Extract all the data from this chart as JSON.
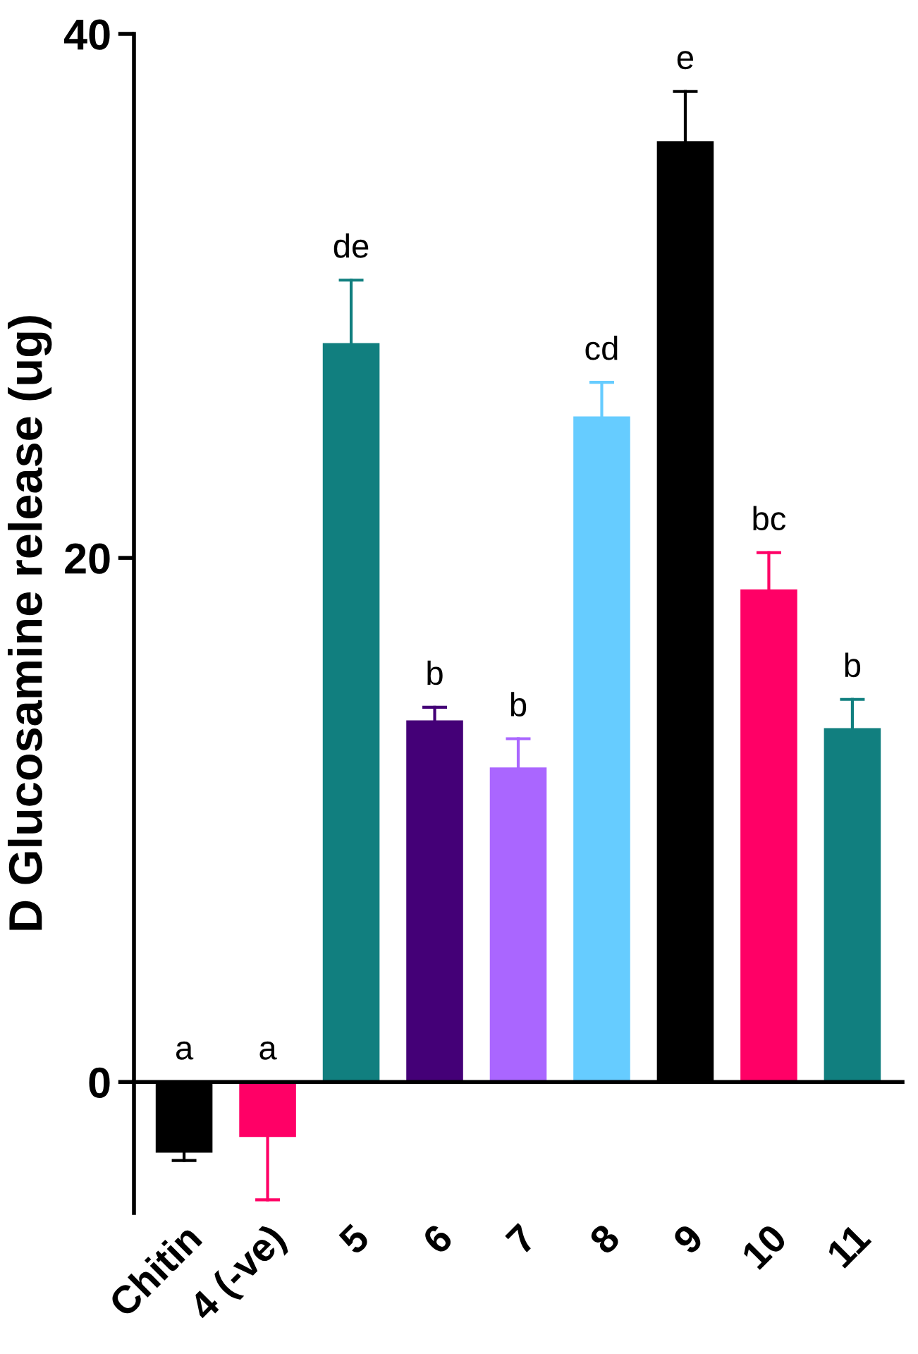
{
  "chart_data": {
    "type": "bar",
    "ylabel": "D Glucosamine release (ug)",
    "categories": [
      "Chitin",
      "4 (-ve)",
      "5",
      "6",
      "7",
      "8",
      "9",
      "10",
      "11"
    ],
    "values": [
      -2.7,
      -2.1,
      28.2,
      13.8,
      12.0,
      25.4,
      35.9,
      18.8,
      13.5
    ],
    "errors": [
      [
        -3.0,
        -2.7
      ],
      [
        -4.5,
        -2.1
      ],
      [
        28.2,
        30.6
      ],
      [
        13.8,
        14.3
      ],
      [
        12.0,
        13.1
      ],
      [
        25.4,
        26.7
      ],
      [
        35.9,
        37.8
      ],
      [
        18.8,
        20.2
      ],
      [
        13.5,
        14.6
      ]
    ],
    "colors": [
      "#000000",
      "#ff0066",
      "#117f7f",
      "#440077",
      "#aa66ff",
      "#66ccff",
      "#000000",
      "#ff0066",
      "#117f7f"
    ],
    "ylim": [
      -5,
      40
    ],
    "yticks": [
      0,
      20,
      40
    ],
    "annotations": [
      "a",
      "a",
      "de",
      "b",
      "b",
      "cd",
      "e",
      "bc",
      "b"
    ]
  }
}
